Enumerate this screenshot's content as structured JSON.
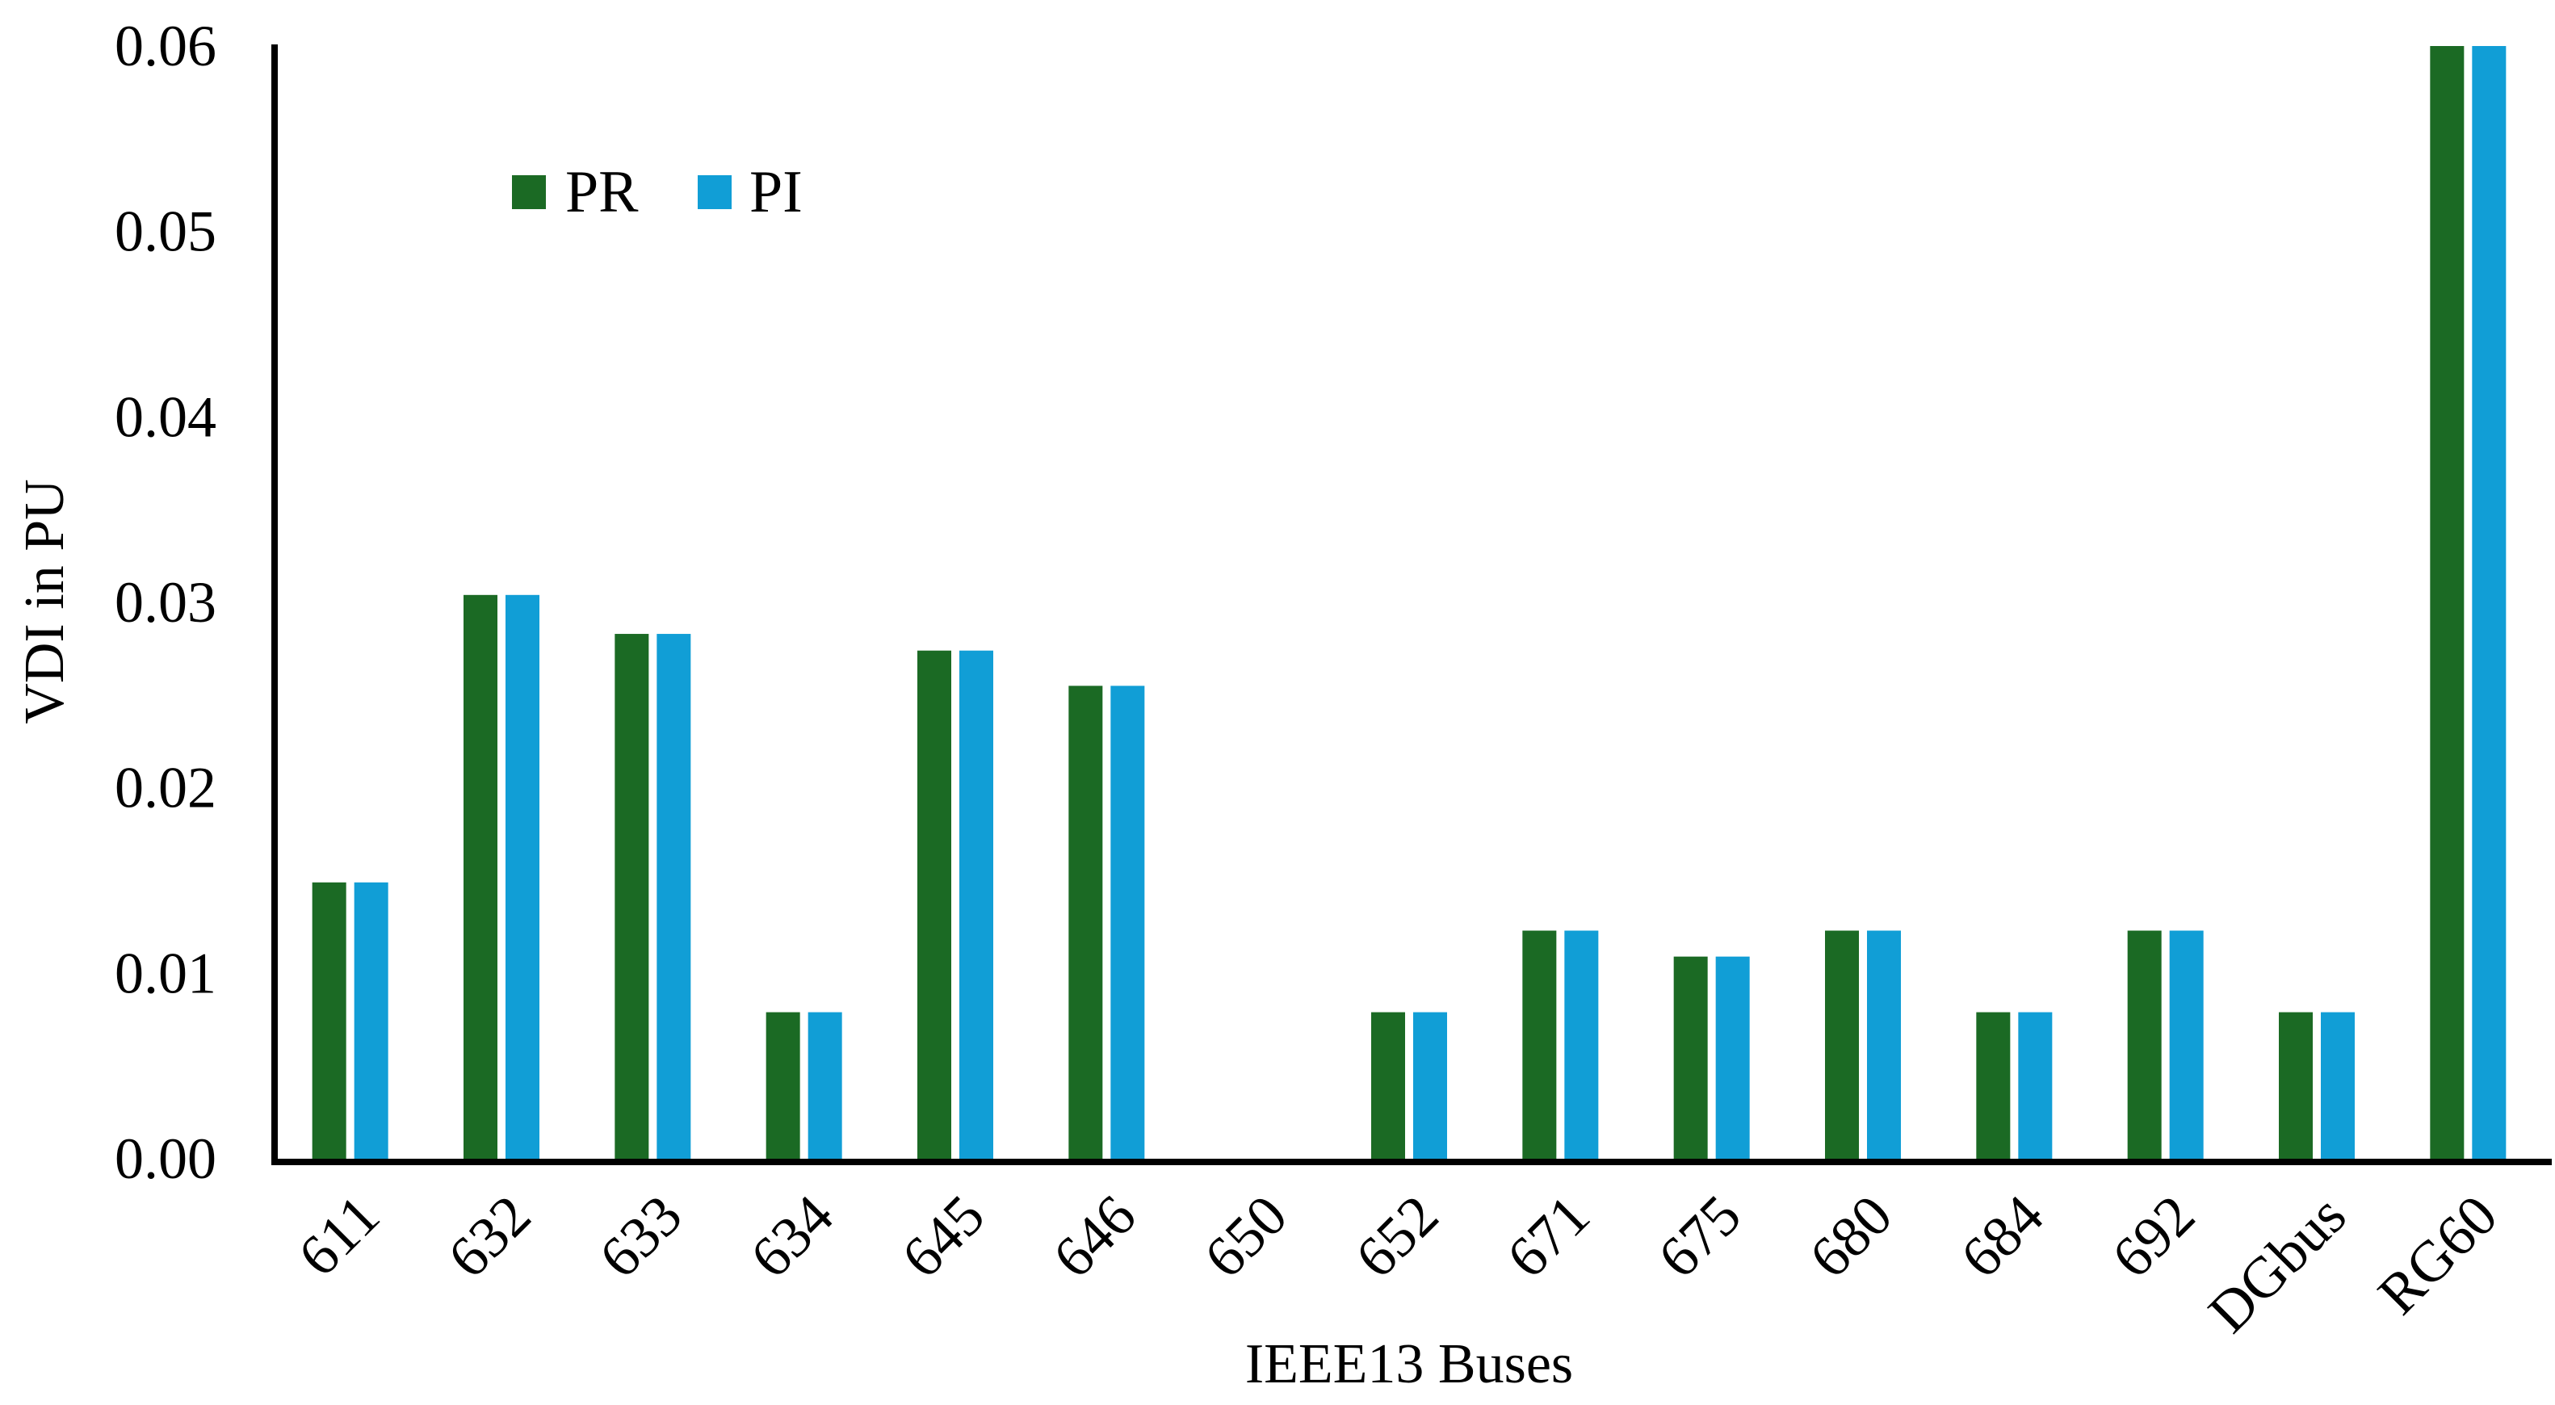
{
  "chart_data": {
    "type": "bar",
    "title": "",
    "xlabel": "IEEE13 Buses",
    "ylabel": "VDI in PU",
    "ylim": [
      0,
      0.06
    ],
    "yticks": [
      "0.00",
      "0.01",
      "0.02",
      "0.03",
      "0.04",
      "0.05",
      "0.06"
    ],
    "grid": false,
    "legend_position": "top-left",
    "categories": [
      "611",
      "632",
      "633",
      "634",
      "645",
      "646",
      "650",
      "652",
      "671",
      "675",
      "680",
      "684",
      "692",
      "DGbus",
      "RG60"
    ],
    "series": [
      {
        "name": "PR",
        "color": "#1B6A24",
        "values": [
          0.0149,
          0.0304,
          0.0283,
          0.0079,
          0.0274,
          0.0255,
          0,
          0.0079,
          0.0123,
          0.0109,
          0.0123,
          0.0079,
          0.0123,
          0.0079,
          0.06
        ]
      },
      {
        "name": "PI",
        "color": "#119ED6",
        "values": [
          0.0149,
          0.0304,
          0.0283,
          0.0079,
          0.0274,
          0.0255,
          0,
          0.0079,
          0.0123,
          0.0109,
          0.0123,
          0.0079,
          0.0123,
          0.0079,
          0.06
        ]
      }
    ]
  }
}
